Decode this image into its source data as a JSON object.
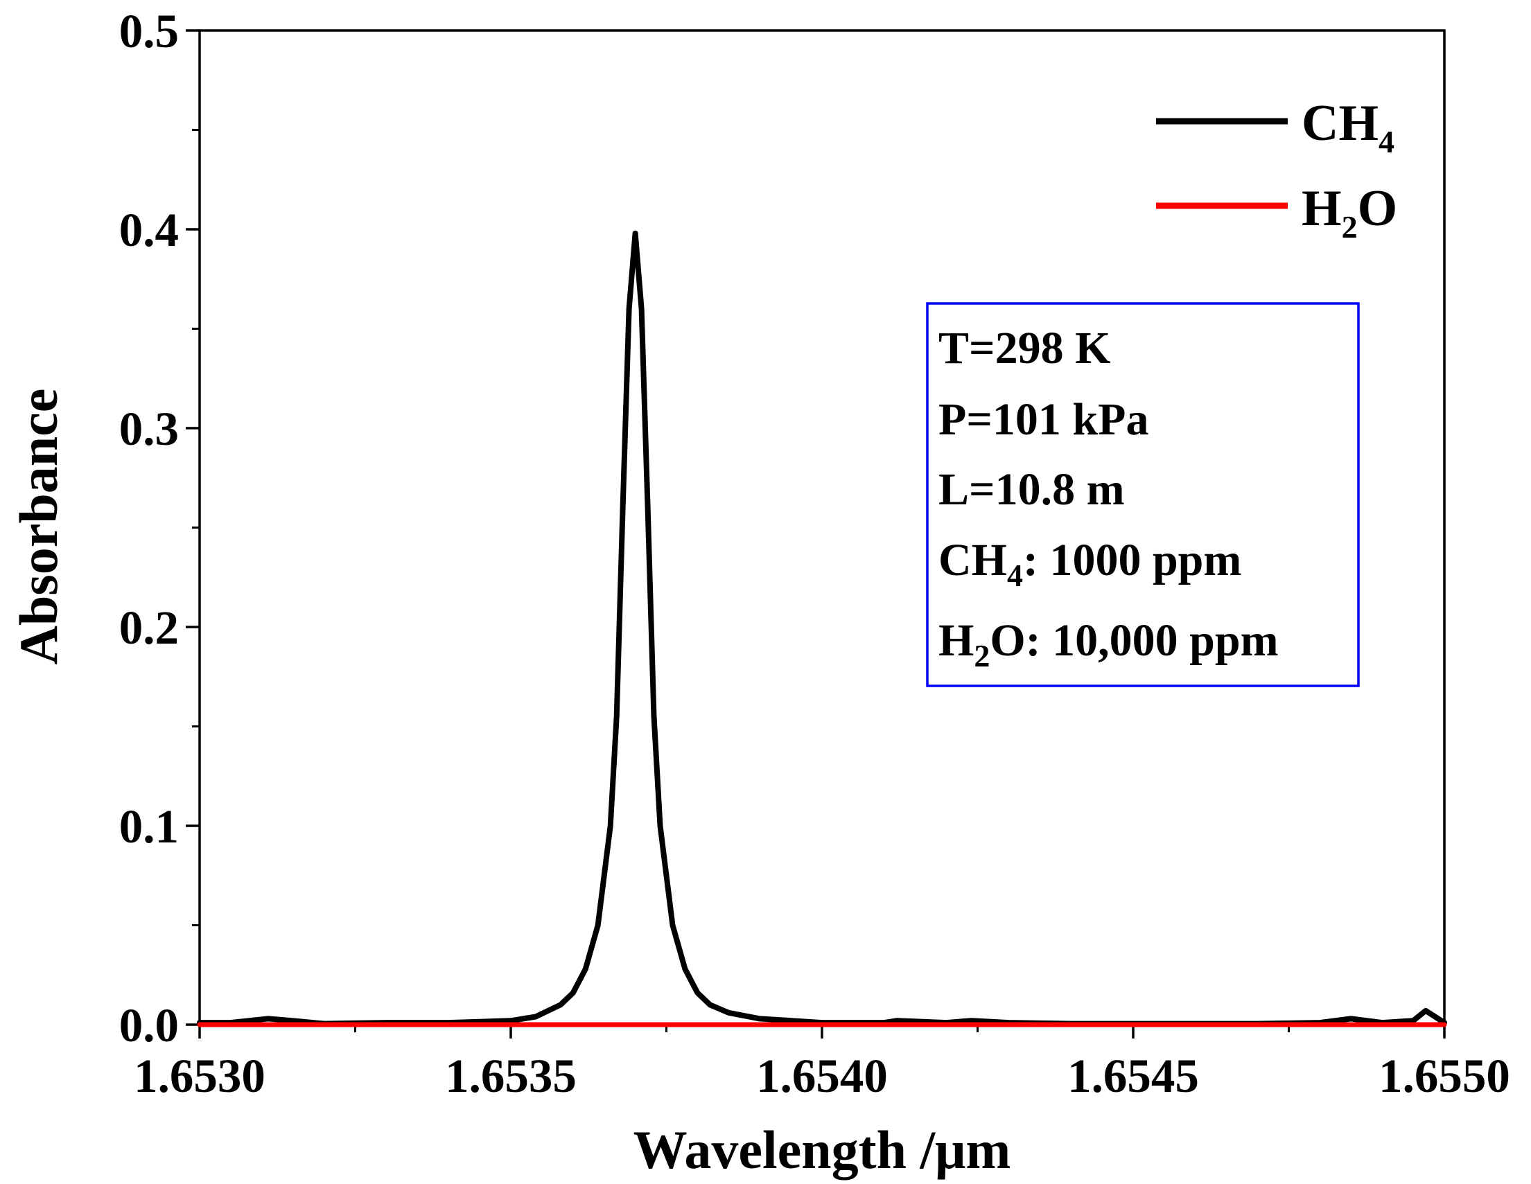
{
  "chart_data": {
    "type": "line",
    "title": "",
    "xlabel": "Wavelength /μm",
    "ylabel": "Absorbance",
    "xlim": [
      1.653,
      1.655
    ],
    "ylim": [
      0.0,
      0.5
    ],
    "xticks": [
      1.653,
      1.6535,
      1.654,
      1.6545,
      1.655
    ],
    "xtick_labels": [
      "1.6530",
      "1.6535",
      "1.6540",
      "1.6545",
      "1.6550"
    ],
    "yticks": [
      0.0,
      0.1,
      0.2,
      0.3,
      0.4,
      0.5
    ],
    "ytick_labels": [
      "0.0",
      "0.1",
      "0.2",
      "0.3",
      "0.4",
      "0.5"
    ],
    "x_minor_step": 0.00025,
    "y_minor_step": 0.05,
    "grid": false,
    "legend_position": "top-right",
    "series": [
      {
        "name": "CH4",
        "label_main": "CH",
        "label_sub": "4",
        "color": "#000000",
        "x": [
          1.653,
          1.65305,
          1.65311,
          1.65315,
          1.6532,
          1.6533,
          1.6534,
          1.65345,
          1.6535,
          1.65354,
          1.65358,
          1.6536,
          1.65362,
          1.65364,
          1.65366,
          1.65367,
          1.65368,
          1.65369,
          1.6537,
          1.65371,
          1.65372,
          1.65373,
          1.65374,
          1.65376,
          1.65378,
          1.6538,
          1.65382,
          1.65385,
          1.6539,
          1.654,
          1.6541,
          1.65412,
          1.6542,
          1.65424,
          1.6543,
          1.6544,
          1.6545,
          1.6546,
          1.6547,
          1.6548,
          1.65485,
          1.6549,
          1.65495,
          1.65497,
          1.655
        ],
        "y": [
          0.001,
          0.001,
          0.003,
          0.002,
          0.0005,
          0.001,
          0.001,
          0.0015,
          0.002,
          0.004,
          0.01,
          0.016,
          0.028,
          0.05,
          0.1,
          0.155,
          0.26,
          0.36,
          0.398,
          0.36,
          0.26,
          0.155,
          0.1,
          0.05,
          0.028,
          0.016,
          0.01,
          0.006,
          0.003,
          0.001,
          0.001,
          0.002,
          0.001,
          0.002,
          0.001,
          0.0005,
          0.0005,
          0.0005,
          0.0005,
          0.001,
          0.003,
          0.001,
          0.002,
          0.007,
          0.001
        ]
      },
      {
        "name": "H2O",
        "label_main": "H",
        "label_sub": "2",
        "label_tail": "O",
        "color": "#ff0000",
        "x": [
          1.653,
          1.655
        ],
        "y": [
          0.0,
          0.0
        ]
      }
    ],
    "annotation": {
      "border_color": "#0000ff",
      "t_line": "T=298 K",
      "p_line": "P=101 kPa",
      "l_line": "L=10.8 m",
      "ch4_main": "CH",
      "ch4_sub": "4",
      "ch4_tail": ": 1000 ppm",
      "h2o_main": "H",
      "h2o_sub": "2",
      "h2o_tail": "O: 10,000 ppm"
    }
  }
}
